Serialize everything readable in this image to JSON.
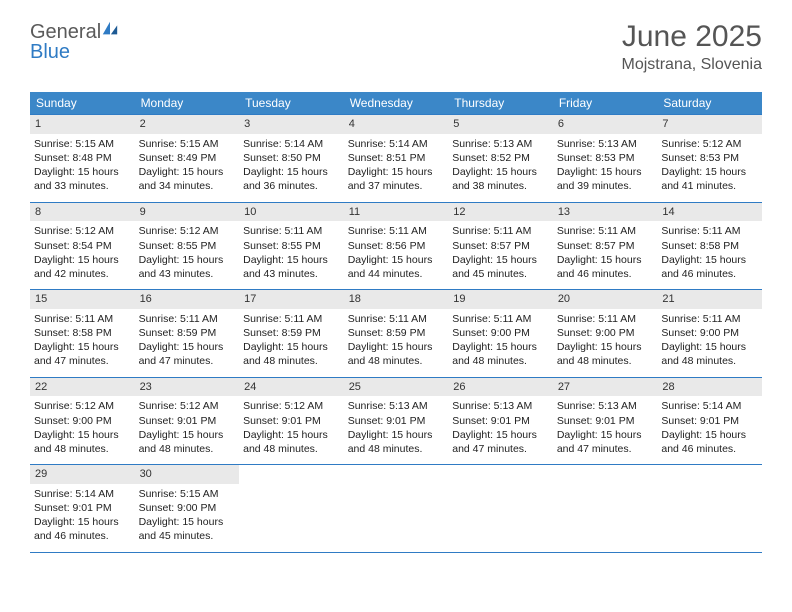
{
  "logo": {
    "text1": "General",
    "text2": "Blue"
  },
  "title": "June 2025",
  "location": "Mojstrana, Slovenia",
  "colors": {
    "header_bg": "#3b87c8",
    "header_fg": "#ffffff",
    "rule": "#2f7bc4",
    "daynum_bg": "#e9e9e9",
    "text": "#333333",
    "logo_gray": "#5a5a5a",
    "logo_blue": "#2f7bc4"
  },
  "weekdays": [
    "Sunday",
    "Monday",
    "Tuesday",
    "Wednesday",
    "Thursday",
    "Friday",
    "Saturday"
  ],
  "weeks": [
    [
      {
        "num": "1",
        "sunrise": "Sunrise: 5:15 AM",
        "sunset": "Sunset: 8:48 PM",
        "day1": "Daylight: 15 hours",
        "day2": "and 33 minutes."
      },
      {
        "num": "2",
        "sunrise": "Sunrise: 5:15 AM",
        "sunset": "Sunset: 8:49 PM",
        "day1": "Daylight: 15 hours",
        "day2": "and 34 minutes."
      },
      {
        "num": "3",
        "sunrise": "Sunrise: 5:14 AM",
        "sunset": "Sunset: 8:50 PM",
        "day1": "Daylight: 15 hours",
        "day2": "and 36 minutes."
      },
      {
        "num": "4",
        "sunrise": "Sunrise: 5:14 AM",
        "sunset": "Sunset: 8:51 PM",
        "day1": "Daylight: 15 hours",
        "day2": "and 37 minutes."
      },
      {
        "num": "5",
        "sunrise": "Sunrise: 5:13 AM",
        "sunset": "Sunset: 8:52 PM",
        "day1": "Daylight: 15 hours",
        "day2": "and 38 minutes."
      },
      {
        "num": "6",
        "sunrise": "Sunrise: 5:13 AM",
        "sunset": "Sunset: 8:53 PM",
        "day1": "Daylight: 15 hours",
        "day2": "and 39 minutes."
      },
      {
        "num": "7",
        "sunrise": "Sunrise: 5:12 AM",
        "sunset": "Sunset: 8:53 PM",
        "day1": "Daylight: 15 hours",
        "day2": "and 41 minutes."
      }
    ],
    [
      {
        "num": "8",
        "sunrise": "Sunrise: 5:12 AM",
        "sunset": "Sunset: 8:54 PM",
        "day1": "Daylight: 15 hours",
        "day2": "and 42 minutes."
      },
      {
        "num": "9",
        "sunrise": "Sunrise: 5:12 AM",
        "sunset": "Sunset: 8:55 PM",
        "day1": "Daylight: 15 hours",
        "day2": "and 43 minutes."
      },
      {
        "num": "10",
        "sunrise": "Sunrise: 5:11 AM",
        "sunset": "Sunset: 8:55 PM",
        "day1": "Daylight: 15 hours",
        "day2": "and 43 minutes."
      },
      {
        "num": "11",
        "sunrise": "Sunrise: 5:11 AM",
        "sunset": "Sunset: 8:56 PM",
        "day1": "Daylight: 15 hours",
        "day2": "and 44 minutes."
      },
      {
        "num": "12",
        "sunrise": "Sunrise: 5:11 AM",
        "sunset": "Sunset: 8:57 PM",
        "day1": "Daylight: 15 hours",
        "day2": "and 45 minutes."
      },
      {
        "num": "13",
        "sunrise": "Sunrise: 5:11 AM",
        "sunset": "Sunset: 8:57 PM",
        "day1": "Daylight: 15 hours",
        "day2": "and 46 minutes."
      },
      {
        "num": "14",
        "sunrise": "Sunrise: 5:11 AM",
        "sunset": "Sunset: 8:58 PM",
        "day1": "Daylight: 15 hours",
        "day2": "and 46 minutes."
      }
    ],
    [
      {
        "num": "15",
        "sunrise": "Sunrise: 5:11 AM",
        "sunset": "Sunset: 8:58 PM",
        "day1": "Daylight: 15 hours",
        "day2": "and 47 minutes."
      },
      {
        "num": "16",
        "sunrise": "Sunrise: 5:11 AM",
        "sunset": "Sunset: 8:59 PM",
        "day1": "Daylight: 15 hours",
        "day2": "and 47 minutes."
      },
      {
        "num": "17",
        "sunrise": "Sunrise: 5:11 AM",
        "sunset": "Sunset: 8:59 PM",
        "day1": "Daylight: 15 hours",
        "day2": "and 48 minutes."
      },
      {
        "num": "18",
        "sunrise": "Sunrise: 5:11 AM",
        "sunset": "Sunset: 8:59 PM",
        "day1": "Daylight: 15 hours",
        "day2": "and 48 minutes."
      },
      {
        "num": "19",
        "sunrise": "Sunrise: 5:11 AM",
        "sunset": "Sunset: 9:00 PM",
        "day1": "Daylight: 15 hours",
        "day2": "and 48 minutes."
      },
      {
        "num": "20",
        "sunrise": "Sunrise: 5:11 AM",
        "sunset": "Sunset: 9:00 PM",
        "day1": "Daylight: 15 hours",
        "day2": "and 48 minutes."
      },
      {
        "num": "21",
        "sunrise": "Sunrise: 5:11 AM",
        "sunset": "Sunset: 9:00 PM",
        "day1": "Daylight: 15 hours",
        "day2": "and 48 minutes."
      }
    ],
    [
      {
        "num": "22",
        "sunrise": "Sunrise: 5:12 AM",
        "sunset": "Sunset: 9:00 PM",
        "day1": "Daylight: 15 hours",
        "day2": "and 48 minutes."
      },
      {
        "num": "23",
        "sunrise": "Sunrise: 5:12 AM",
        "sunset": "Sunset: 9:01 PM",
        "day1": "Daylight: 15 hours",
        "day2": "and 48 minutes."
      },
      {
        "num": "24",
        "sunrise": "Sunrise: 5:12 AM",
        "sunset": "Sunset: 9:01 PM",
        "day1": "Daylight: 15 hours",
        "day2": "and 48 minutes."
      },
      {
        "num": "25",
        "sunrise": "Sunrise: 5:13 AM",
        "sunset": "Sunset: 9:01 PM",
        "day1": "Daylight: 15 hours",
        "day2": "and 48 minutes."
      },
      {
        "num": "26",
        "sunrise": "Sunrise: 5:13 AM",
        "sunset": "Sunset: 9:01 PM",
        "day1": "Daylight: 15 hours",
        "day2": "and 47 minutes."
      },
      {
        "num": "27",
        "sunrise": "Sunrise: 5:13 AM",
        "sunset": "Sunset: 9:01 PM",
        "day1": "Daylight: 15 hours",
        "day2": "and 47 minutes."
      },
      {
        "num": "28",
        "sunrise": "Sunrise: 5:14 AM",
        "sunset": "Sunset: 9:01 PM",
        "day1": "Daylight: 15 hours",
        "day2": "and 46 minutes."
      }
    ],
    [
      {
        "num": "29",
        "sunrise": "Sunrise: 5:14 AM",
        "sunset": "Sunset: 9:01 PM",
        "day1": "Daylight: 15 hours",
        "day2": "and 46 minutes."
      },
      {
        "num": "30",
        "sunrise": "Sunrise: 5:15 AM",
        "sunset": "Sunset: 9:00 PM",
        "day1": "Daylight: 15 hours",
        "day2": "and 45 minutes."
      },
      null,
      null,
      null,
      null,
      null
    ]
  ]
}
